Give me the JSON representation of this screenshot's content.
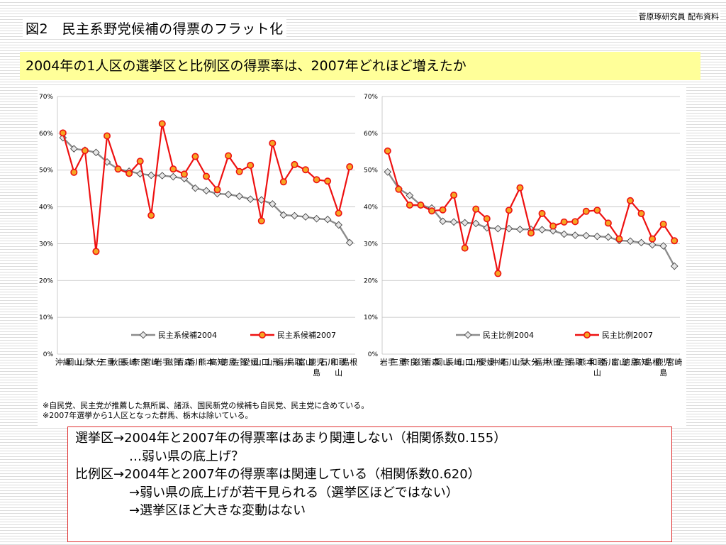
{
  "header": {
    "source": "菅原琢研究員 配布資料",
    "title": "図2　民主系野党候補の得票のフラット化",
    "headline": "2004年の1人区の選挙区と比例区の得票率は、2007年どれほど増えたか"
  },
  "footnotes": [
    "※自民党、民主党が推薦した無所属、諸派、国民新党の候補も自民党、民主党に含めている。",
    "※2007年選挙から1人区となった群馬、栃木は除いている。"
  ],
  "summary": [
    "選挙区→2004年と2007年の得票率はあまり関連しない（相関係数0.155）",
    "…弱い県の底上げ？",
    "比例区→2004年と2007年の得票率は関連している（相関係数0.620）",
    "→弱い県の底上げが若干見られる（選挙区ほどではない）",
    "→選挙区ほど大きな変動はない"
  ],
  "colors": {
    "gray": "#8c8c8c",
    "red": "#ee1111",
    "marker_fill": "#f5a623",
    "axis": "#bfbfbf"
  },
  "chart_data": [
    {
      "type": "line",
      "y_ticks": [
        "0%",
        "10%",
        "20%",
        "30%",
        "40%",
        "50%",
        "60%",
        "70%"
      ],
      "ylim": [
        0,
        70
      ],
      "legend_position": "bottom-right",
      "categories": [
        "沖縄",
        "岡山",
        "山梨",
        "大分",
        "三重",
        "秋田",
        "長崎",
        "奈良",
        "宮崎",
        "岩手",
        "滋賀",
        "青森",
        "香川",
        "熊本",
        "高知",
        "徳島",
        "佐賀",
        "愛媛",
        "山口",
        "山形",
        "福井",
        "鳥取",
        "富山",
        "鹿児島",
        "石川",
        "和歌山",
        "島根"
      ],
      "series": [
        {
          "name": "民主系候補2004",
          "color": "gray",
          "values": [
            58.8,
            55.8,
            55.4,
            54.8,
            52.2,
            50.3,
            49.7,
            49.0,
            48.6,
            48.5,
            48.2,
            47.7,
            45.1,
            44.4,
            43.6,
            43.4,
            42.9,
            42.1,
            41.9,
            40.8,
            37.8,
            37.6,
            37.3,
            36.8,
            36.6,
            35.1,
            30.3
          ]
        },
        {
          "name": "民主系候補2007",
          "color": "red",
          "values": [
            60.1,
            49.4,
            55.3,
            27.9,
            59.3,
            50.3,
            49.1,
            52.4,
            37.7,
            62.6,
            50.3,
            48.9,
            53.7,
            48.3,
            44.7,
            53.9,
            49.6,
            51.3,
            36.2,
            57.3,
            46.8,
            51.5,
            50.1,
            47.4,
            47.0,
            38.3,
            50.9
          ]
        }
      ]
    },
    {
      "type": "line",
      "y_ticks": [
        "0%",
        "10%",
        "20%",
        "30%",
        "40%",
        "50%",
        "60%",
        "70%"
      ],
      "ylim": [
        0,
        70
      ],
      "legend_position": "bottom-right",
      "categories": [
        "岩手",
        "三重",
        "奈良",
        "滋賀",
        "青森",
        "岡山",
        "長崎",
        "山口",
        "山形",
        "愛媛",
        "沖縄",
        "石川",
        "山梨",
        "大分",
        "福井",
        "秋田",
        "佐賀",
        "鳥取",
        "熊本",
        "和歌山",
        "香川",
        "富山",
        "徳島",
        "高知",
        "島根",
        "鹿児島",
        "宮崎"
      ],
      "series": [
        {
          "name": "民主比例2004",
          "color": "gray",
          "values": [
            49.5,
            45.0,
            43.1,
            40.5,
            39.7,
            36.1,
            35.9,
            35.7,
            35.5,
            34.3,
            34.1,
            34.1,
            33.9,
            33.9,
            33.8,
            33.5,
            32.6,
            32.3,
            32.2,
            32.0,
            31.8,
            30.9,
            30.7,
            30.3,
            29.7,
            29.4,
            23.9
          ]
        },
        {
          "name": "民主比例2007",
          "color": "red",
          "values": [
            55.2,
            44.8,
            40.5,
            40.5,
            38.9,
            39.2,
            43.2,
            28.8,
            39.4,
            36.8,
            21.9,
            39.1,
            45.2,
            32.9,
            38.2,
            34.8,
            35.9,
            36.0,
            38.8,
            39.1,
            35.6,
            31.3,
            41.7,
            38.2,
            31.3,
            35.3,
            30.8
          ]
        }
      ]
    }
  ]
}
